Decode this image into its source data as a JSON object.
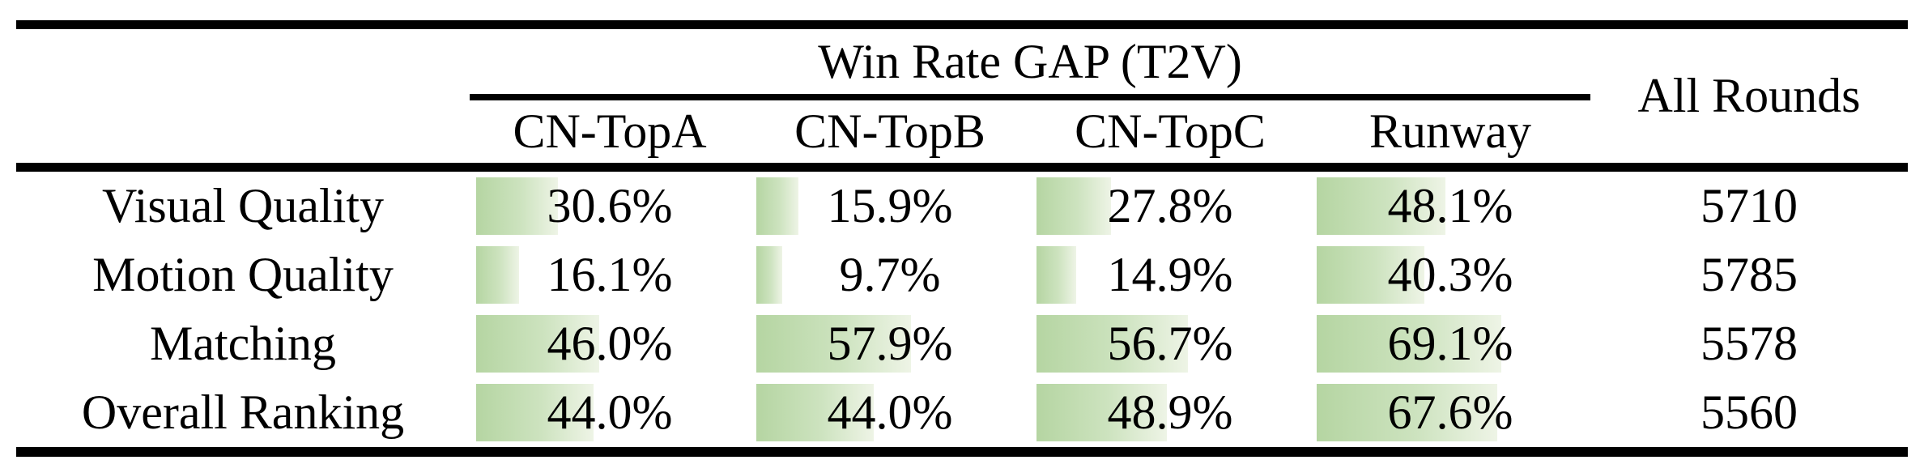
{
  "table": {
    "group_header": "Win Rate GAP (T2V)",
    "all_rounds_header": "All Rounds",
    "columns": [
      "CN-TopA",
      "CN-TopB",
      "CN-TopC",
      "Runway"
    ],
    "rows": [
      {
        "label": "Visual Quality",
        "values": [
          "30.6%",
          "15.9%",
          "27.8%",
          "48.1%"
        ],
        "all_rounds": "5710"
      },
      {
        "label": "Motion Quality",
        "values": [
          "16.1%",
          "9.7%",
          "14.9%",
          "40.3%"
        ],
        "all_rounds": "5785"
      },
      {
        "label": "Matching",
        "values": [
          "46.0%",
          "57.9%",
          "56.7%",
          "69.1%"
        ],
        "all_rounds": "5578"
      },
      {
        "label": "Overall Ranking",
        "values": [
          "44.0%",
          "44.0%",
          "48.9%",
          "67.6%"
        ],
        "all_rounds": "5560"
      }
    ],
    "bar_color_start": "#b5d5a2",
    "bar_color_end": "#eef4e6"
  },
  "chart_data": {
    "type": "table",
    "title": "Win Rate GAP (T2V)",
    "columns": [
      "CN-TopA",
      "CN-TopB",
      "CN-TopC",
      "Runway",
      "All Rounds"
    ],
    "categories": [
      "Visual Quality",
      "Motion Quality",
      "Matching",
      "Overall Ranking"
    ],
    "series": [
      {
        "name": "CN-TopA",
        "values": [
          30.6,
          16.1,
          46.0,
          44.0
        ],
        "unit": "%"
      },
      {
        "name": "CN-TopB",
        "values": [
          15.9,
          9.7,
          57.9,
          44.0
        ],
        "unit": "%"
      },
      {
        "name": "CN-TopC",
        "values": [
          27.8,
          14.9,
          56.7,
          48.9
        ],
        "unit": "%"
      },
      {
        "name": "Runway",
        "values": [
          48.1,
          40.3,
          69.1,
          67.6
        ],
        "unit": "%"
      }
    ],
    "all_rounds": [
      5710,
      5785,
      5578,
      5560
    ],
    "layout_hints": {
      "data_bars": "green horizontal gradient bars, width proportional to percentage, 100% ~ full column width"
    }
  }
}
